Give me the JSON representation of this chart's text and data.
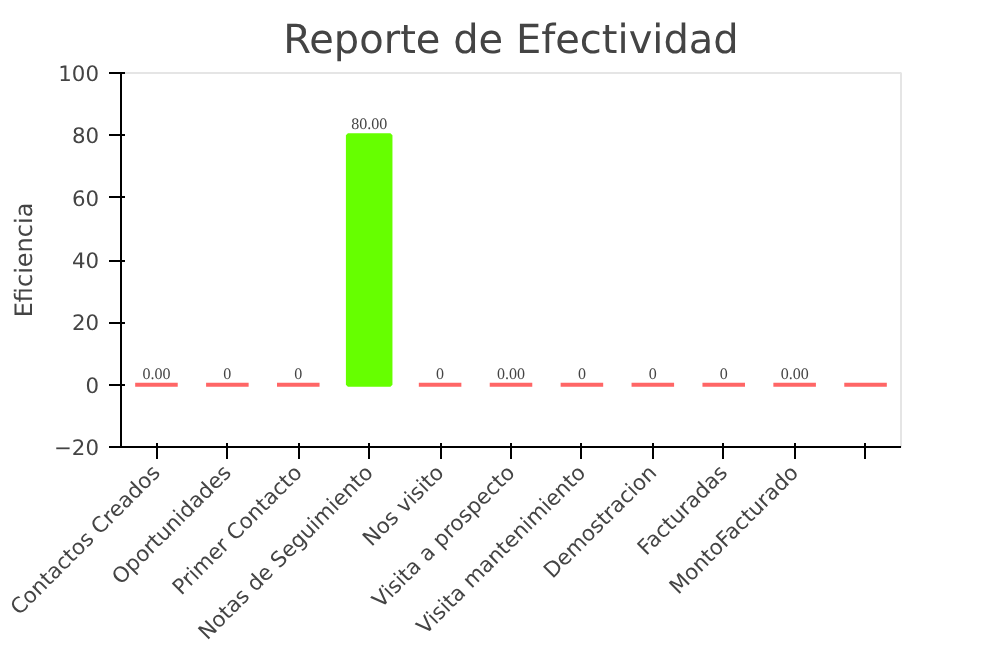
{
  "chart_data": {
    "type": "bar",
    "title": "Reporte de Efectividad",
    "ylabel": "Eficiencia",
    "categories": [
      "Contactos Creados",
      "Oportunidades",
      "Primer Contacto",
      "Notas de Seguimiento",
      "Nos visito",
      "Visita a prospecto",
      "Visita mantenimiento",
      "Demostracion",
      "Facturadas",
      "MontoFacturado",
      null
    ],
    "values": [
      0,
      0,
      0,
      80,
      0,
      0,
      0,
      0,
      0,
      0,
      0
    ],
    "colors": [
      "#ff6666",
      "#ff6666",
      "#ff6666",
      "#66ff00",
      "#ff6666",
      "#ff6666",
      "#ff6666",
      "#ff6666",
      "#ff6666",
      "#ff6666",
      "#ff6666"
    ],
    "value_labels": [
      "0.00",
      "0",
      "0",
      "80.00",
      "0",
      "0.00",
      "0",
      "0",
      "0",
      "0.00",
      null
    ],
    "ylim": [
      -20,
      100
    ],
    "yticks": [
      -20,
      0,
      20,
      40,
      60,
      80,
      100
    ],
    "grid": false
  }
}
